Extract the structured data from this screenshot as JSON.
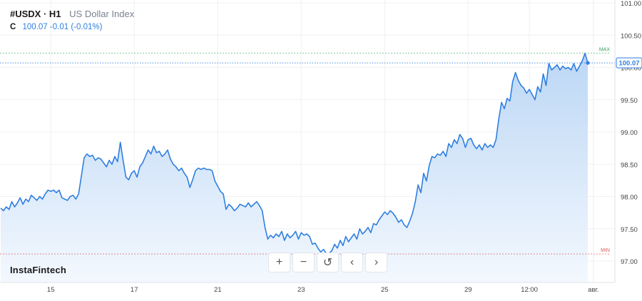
{
  "header": {
    "symbol": "#USDX · H1",
    "name": "US Dollar Index"
  },
  "quote": {
    "prefix": "C",
    "close": "100.07",
    "change": "-0.01 (-0.01%)"
  },
  "brand": "InstaFintech",
  "toolbar": [
    {
      "name": "zoom-in-button",
      "icon": "plus-icon",
      "glyph": "+"
    },
    {
      "name": "zoom-out-button",
      "icon": "minus-icon",
      "glyph": "−"
    },
    {
      "name": "reset-button",
      "icon": "reset-icon",
      "glyph": "↺"
    },
    {
      "name": "scroll-left-button",
      "icon": "chevron-left-icon",
      "glyph": "‹"
    },
    {
      "name": "scroll-right-button",
      "icon": "chevron-right-icon",
      "glyph": "›"
    }
  ],
  "colors": {
    "line": "#2f7fe0",
    "fill_top": "#bcd7f5",
    "fill_bottom": "#f3f8fe",
    "max": "#3aa356",
    "min": "#e05b5b",
    "price_tag": "#2f7fe0"
  },
  "chart_data": {
    "type": "area",
    "ylim": [
      96.75,
      101.0
    ],
    "y_ticks": [
      "101.00",
      "100.50",
      "100.00",
      "99.50",
      "99.00",
      "98.50",
      "98.00",
      "97.50",
      "97.00"
    ],
    "y_tick_values": [
      101.0,
      100.5,
      100.0,
      99.5,
      99.0,
      98.5,
      98.0,
      97.5,
      97.0
    ],
    "x_ticks": [
      {
        "label": "15",
        "idx": 18
      },
      {
        "label": "17",
        "idx": 48
      },
      {
        "label": "21",
        "idx": 78
      },
      {
        "label": "23",
        "idx": 108
      },
      {
        "label": "25",
        "idx": 138
      },
      {
        "label": "29",
        "idx": 168
      },
      {
        "label": "12:00",
        "idx": 190
      },
      {
        "label": "авг.",
        "idx": 213
      }
    ],
    "max_label": "MAX",
    "min_label": "MIN",
    "max_value": 100.22,
    "min_value": 97.11,
    "last_label": "100.07",
    "last_value": 100.07,
    "values": [
      97.82,
      97.78,
      97.84,
      97.8,
      97.92,
      97.84,
      97.9,
      97.98,
      97.88,
      97.96,
      97.92,
      98.02,
      97.98,
      97.94,
      98.0,
      97.96,
      98.04,
      98.1,
      98.08,
      98.1,
      98.06,
      98.1,
      97.98,
      97.96,
      97.94,
      98.0,
      98.02,
      97.96,
      98.04,
      98.32,
      98.6,
      98.66,
      98.62,
      98.64,
      98.56,
      98.6,
      98.58,
      98.52,
      98.46,
      98.56,
      98.5,
      98.62,
      98.54,
      98.84,
      98.56,
      98.3,
      98.26,
      98.36,
      98.4,
      98.3,
      98.46,
      98.52,
      98.62,
      98.72,
      98.66,
      98.78,
      98.68,
      98.7,
      98.62,
      98.66,
      98.72,
      98.58,
      98.5,
      98.46,
      98.4,
      98.44,
      98.36,
      98.3,
      98.14,
      98.26,
      98.4,
      98.44,
      98.42,
      98.44,
      98.42,
      98.42,
      98.4,
      98.24,
      98.16,
      98.08,
      98.04,
      97.8,
      97.88,
      97.84,
      97.78,
      97.82,
      97.88,
      97.86,
      97.84,
      97.9,
      97.84,
      97.88,
      97.92,
      97.86,
      97.78,
      97.52,
      97.34,
      97.4,
      97.36,
      97.42,
      97.38,
      97.46,
      97.32,
      97.42,
      97.36,
      97.4,
      97.46,
      97.34,
      97.44,
      97.4,
      97.42,
      97.38,
      97.26,
      97.28,
      97.2,
      97.14,
      97.18,
      97.12,
      97.12,
      97.16,
      97.26,
      97.2,
      97.32,
      97.24,
      97.38,
      97.3,
      97.36,
      97.42,
      97.34,
      97.5,
      97.42,
      97.46,
      97.52,
      97.44,
      97.58,
      97.56,
      97.64,
      97.7,
      97.76,
      97.72,
      97.78,
      97.74,
      97.68,
      97.6,
      97.64,
      97.56,
      97.52,
      97.62,
      97.74,
      97.92,
      98.18,
      98.06,
      98.36,
      98.24,
      98.48,
      98.62,
      98.6,
      98.66,
      98.64,
      98.7,
      98.62,
      98.82,
      98.76,
      98.88,
      98.82,
      98.96,
      98.9,
      98.76,
      98.88,
      98.9,
      98.8,
      98.74,
      98.8,
      98.72,
      98.82,
      98.76,
      98.8,
      98.76,
      98.88,
      99.2,
      99.46,
      99.36,
      99.52,
      99.48,
      99.78,
      99.92,
      99.8,
      99.72,
      99.68,
      99.6,
      99.66,
      99.58,
      99.5,
      99.7,
      99.62,
      99.9,
      99.72,
      100.06,
      99.96,
      100.0,
      100.04,
      99.96,
      100.02,
      99.98,
      100.0,
      99.96,
      100.06,
      99.94,
      100.02,
      100.1,
      100.22,
      100.07
    ]
  }
}
